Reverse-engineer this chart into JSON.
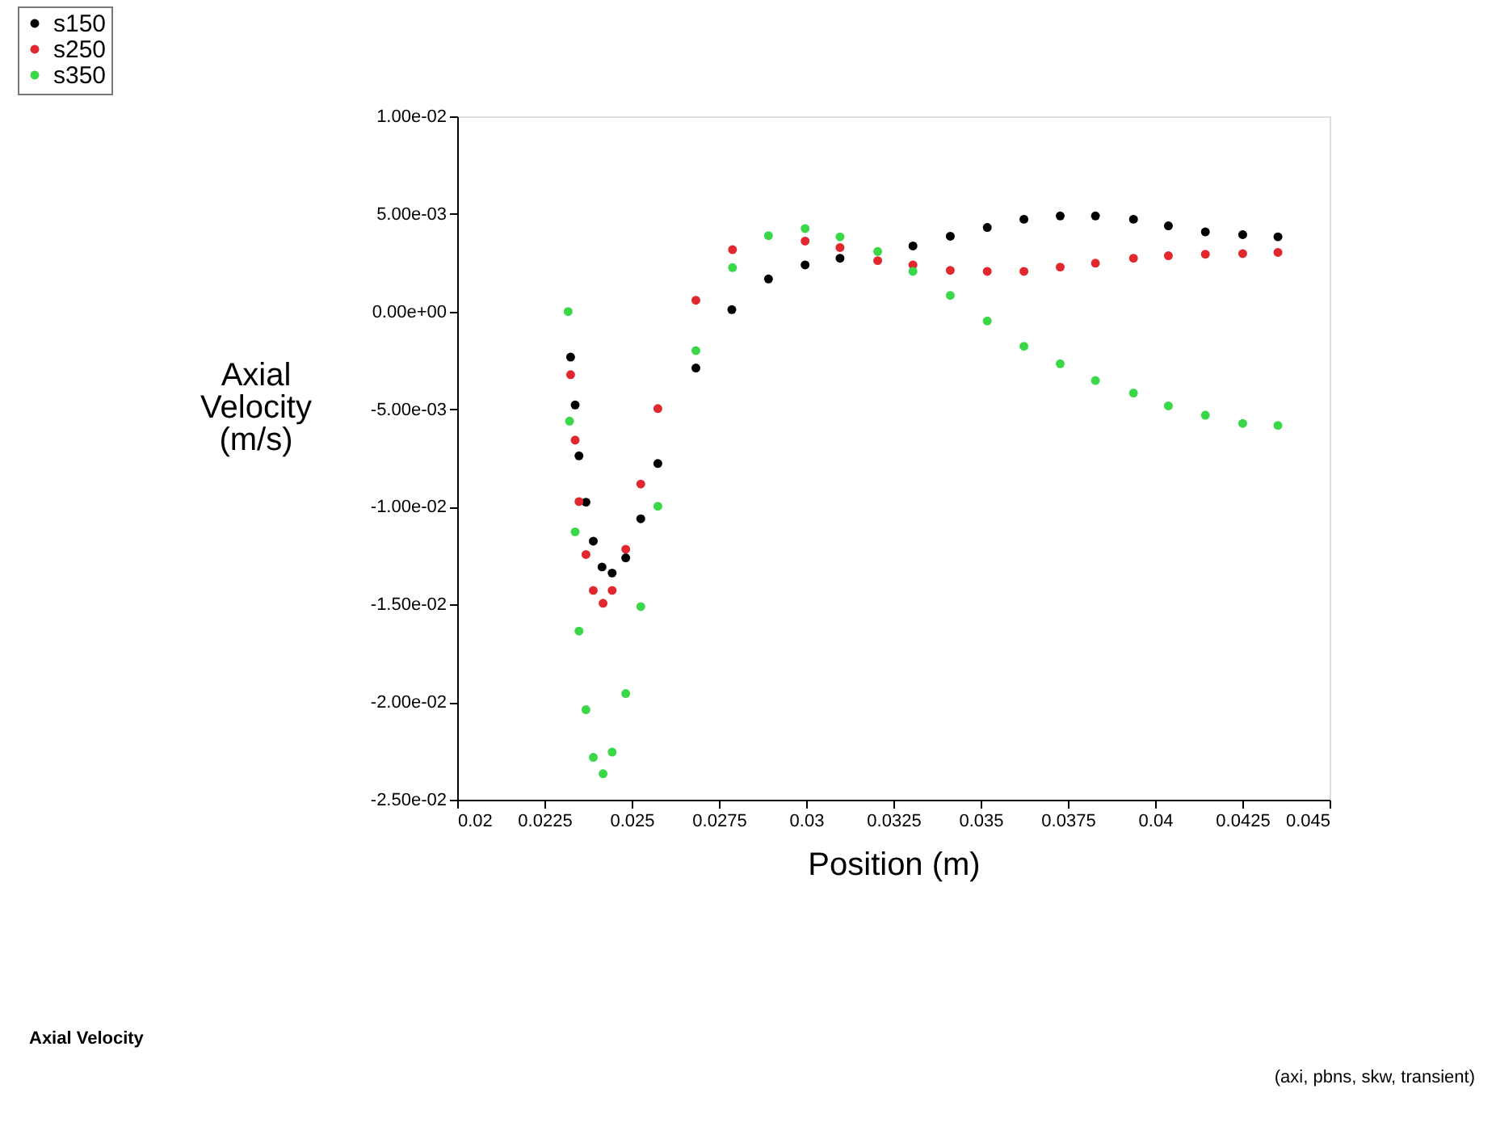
{
  "chart_data": {
    "type": "scatter",
    "xlabel": "Position (m)",
    "ylabel": "Axial Velocity (m/s)",
    "xlim": [
      0.02,
      0.045
    ],
    "xticks": [
      0.02,
      0.0225,
      0.025,
      0.0275,
      0.03,
      0.0325,
      0.035,
      0.0375,
      0.04,
      0.0425,
      0.045
    ],
    "ylim": [
      -0.025,
      0.01
    ],
    "yticks": [
      {
        "value": -0.025,
        "label": "-2.50e-02"
      },
      {
        "value": -0.02,
        "label": "-2.00e-02"
      },
      {
        "value": -0.015,
        "label": "-1.50e-02"
      },
      {
        "value": -0.01,
        "label": "-1.00e-02"
      },
      {
        "value": -0.005,
        "label": "-5.00e-03"
      },
      {
        "value": 0,
        "label": "0.00e+00"
      },
      {
        "value": 0.005,
        "label": "5.00e-03"
      },
      {
        "value": 0.01,
        "label": "1.00e-02"
      }
    ],
    "grid": false,
    "legend": "top left",
    "marker": "circle",
    "annotations": [
      "Axial Velocity",
      "(axi, pbns, skw, transient)"
    ],
    "series": [
      {
        "name": "s150",
        "color": "#000000",
        "x": [
          0.02325,
          0.02338,
          0.02349,
          0.02369,
          0.0239,
          0.02415,
          0.02444,
          0.02483,
          0.02526,
          0.02575,
          0.02684,
          0.02787,
          0.02892,
          0.02997,
          0.03097,
          0.03306,
          0.03413,
          0.03519,
          0.03624,
          0.03728,
          0.03829,
          0.03938,
          0.04038,
          0.04144,
          0.04251,
          0.04352
        ],
        "values": [
          -0.00233,
          -0.00478,
          -0.00739,
          -0.00976,
          -0.01176,
          -0.01308,
          -0.01339,
          -0.01261,
          -0.01061,
          -0.00778,
          -0.00289,
          0.0001,
          0.00167,
          0.00239,
          0.00273,
          0.00336,
          0.00386,
          0.00431,
          0.00473,
          0.0049,
          0.0049,
          0.00473,
          0.00439,
          0.00408,
          0.00394,
          0.00383
        ]
      },
      {
        "name": "s250",
        "color": "#e0282e",
        "x": [
          0.02325,
          0.02338,
          0.02349,
          0.02369,
          0.0239,
          0.02418,
          0.02444,
          0.02483,
          0.02526,
          0.02575,
          0.02684,
          0.02789,
          0.02997,
          0.03097,
          0.03205,
          0.03306,
          0.03413,
          0.03519,
          0.03624,
          0.03728,
          0.03829,
          0.03938,
          0.04038,
          0.04144,
          0.04251,
          0.04352
        ],
        "values": [
          -0.00323,
          -0.00658,
          -0.00973,
          -0.01244,
          -0.01428,
          -0.01494,
          -0.01428,
          -0.01217,
          -0.00883,
          -0.00497,
          0.00058,
          0.00317,
          0.00361,
          0.00328,
          0.00261,
          0.00239,
          0.00211,
          0.00206,
          0.00206,
          0.00228,
          0.00248,
          0.00273,
          0.00286,
          0.00294,
          0.00297,
          0.00303
        ]
      },
      {
        "name": "s350",
        "color": "#3ad848",
        "x": [
          0.02318,
          0.02322,
          0.02338,
          0.02349,
          0.02369,
          0.0239,
          0.02418,
          0.02444,
          0.02483,
          0.02526,
          0.02575,
          0.02684,
          0.02789,
          0.02892,
          0.02997,
          0.03097,
          0.03205,
          0.03306,
          0.03413,
          0.03519,
          0.03624,
          0.03728,
          0.03829,
          0.03938,
          0.04038,
          0.04144,
          0.04251,
          0.04352
        ],
        "values": [
          0.0,
          -0.00561,
          -0.01128,
          -0.01636,
          -0.02039,
          -0.02283,
          -0.02367,
          -0.02256,
          -0.01956,
          -0.01511,
          -0.00997,
          -0.002,
          0.00225,
          0.00389,
          0.00425,
          0.00383,
          0.00308,
          0.00206,
          0.00083,
          -0.00048,
          -0.00178,
          -0.00267,
          -0.00353,
          -0.00417,
          -0.00483,
          -0.00531,
          -0.00573,
          -0.00583
        ]
      }
    ]
  }
}
